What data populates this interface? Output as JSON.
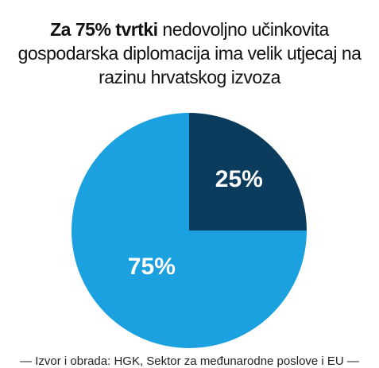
{
  "chart_data": {
    "type": "pie",
    "title_bold": "Za 75% tvrtki",
    "title": "nedovoljno učinkovita gospodarska diplomacija ima velik utjecaj na razinu hrvatskog izvoza",
    "values": [
      25,
      75
    ],
    "value_labels": [
      "25%",
      "75%"
    ],
    "colors": [
      "#0b3c5d",
      "#1ba1df"
    ],
    "source": "— Izvor i obrada: HGK, Sektor za međunarodne poslove i EU —"
  }
}
